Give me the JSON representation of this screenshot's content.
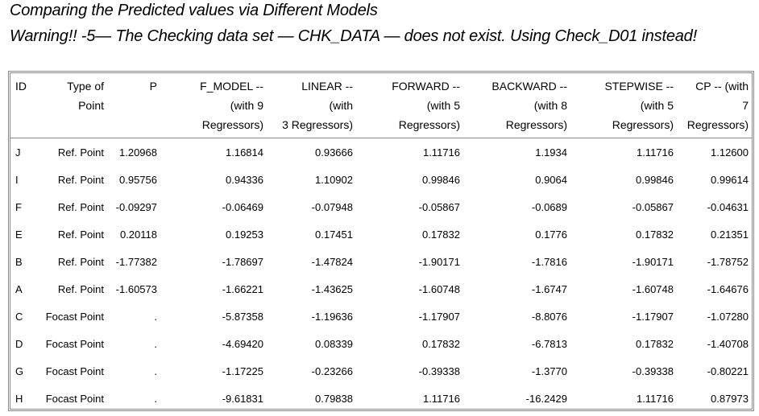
{
  "title": "Comparing the Predicted values via Different Models",
  "warning": "Warning!! -5— The Checking data set — CHK_DATA — does not exist. Using Check_D01 instead!",
  "table": {
    "headers": [
      [
        "ID"
      ],
      [
        "Type of",
        "Point"
      ],
      [
        "P"
      ],
      [
        "F_MODEL --",
        "(with 9",
        "Regressors)"
      ],
      [
        "LINEAR --",
        "(with",
        "3 Regressors)"
      ],
      [
        "FORWARD --",
        "(with 5",
        "Regressors)"
      ],
      [
        "BACKWARD --",
        "(with 8",
        "Regressors)"
      ],
      [
        "STEPWISE --",
        "(with 5",
        "Regressors)"
      ],
      [
        "CP -- (with",
        "7",
        "Regressors)"
      ]
    ],
    "rows": [
      [
        "J",
        "Ref. Point",
        "1.20968",
        "1.16814",
        "0.93666",
        "1.11716",
        "1.1934",
        "1.11716",
        "1.12600"
      ],
      [
        "I",
        "Ref. Point",
        "0.95756",
        "0.94336",
        "1.10902",
        "0.99846",
        "0.9064",
        "0.99846",
        "0.99614"
      ],
      [
        "F",
        "Ref. Point",
        "-0.09297",
        "-0.06469",
        "-0.07948",
        "-0.05867",
        "-0.0689",
        "-0.05867",
        "-0.04631"
      ],
      [
        "E",
        "Ref. Point",
        "0.20118",
        "0.19253",
        "0.17451",
        "0.17832",
        "0.1776",
        "0.17832",
        "0.21351"
      ],
      [
        "B",
        "Ref. Point",
        "-1.77382",
        "-1.78697",
        "-1.47824",
        "-1.90171",
        "-1.7816",
        "-1.90171",
        "-1.78752"
      ],
      [
        "A",
        "Ref. Point",
        "-1.60573",
        "-1.66221",
        "-1.43625",
        "-1.60748",
        "-1.6747",
        "-1.60748",
        "-1.64676"
      ],
      [
        "C",
        "Focast Point",
        ".",
        "-5.87358",
        "-1.19636",
        "-1.17907",
        "-8.8076",
        "-1.17907",
        "-1.07280"
      ],
      [
        "D",
        "Focast Point",
        ".",
        "-4.69420",
        "0.08339",
        "0.17832",
        "-6.7813",
        "0.17832",
        "-1.40708"
      ],
      [
        "G",
        "Focast Point",
        ".",
        "-1.17225",
        "-0.23266",
        "-0.39338",
        "-1.3770",
        "-0.39338",
        "-0.80221"
      ],
      [
        "H",
        "Focast Point",
        ".",
        "-9.61831",
        "0.79838",
        "1.11716",
        "-16.2429",
        "1.11716",
        "0.87973"
      ]
    ]
  }
}
